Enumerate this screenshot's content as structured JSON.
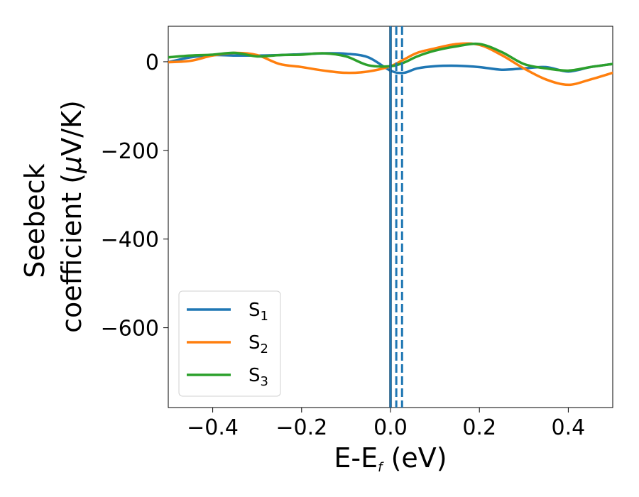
{
  "chart_data": {
    "type": "line",
    "xlabel": "E-E_f (eV)",
    "ylabel": "Seebeck coefficient (μV/K)",
    "xlim": [
      -0.5,
      0.5
    ],
    "ylim": [
      -780,
      80
    ],
    "xticks": [
      -0.4,
      -0.2,
      0.0,
      0.2,
      0.4
    ],
    "xtick_labels": [
      "−0.4",
      "−0.2",
      "0.0",
      "0.2",
      "0.4"
    ],
    "yticks": [
      0,
      -200,
      -400,
      -600
    ],
    "ytick_labels": [
      "0",
      "−200",
      "−400",
      "−600"
    ],
    "grid": false,
    "legend_position": "lower-left",
    "series": [
      {
        "name": "S1",
        "color": "#1f77b4",
        "x": [
          -0.5,
          -0.45,
          -0.4,
          -0.35,
          -0.3,
          -0.25,
          -0.2,
          -0.15,
          -0.1,
          -0.05,
          0.0,
          0.03,
          0.06,
          0.1,
          0.15,
          0.2,
          0.25,
          0.3,
          0.35,
          0.4,
          0.45,
          0.5
        ],
        "y": [
          -1,
          10,
          15,
          14,
          14,
          15,
          17,
          19,
          18,
          10,
          -20,
          -25,
          -15,
          -10,
          -9,
          -12,
          -18,
          -15,
          -12,
          -22,
          -12,
          -5
        ]
      },
      {
        "name": "S2",
        "color": "#ff7f0e",
        "x": [
          -0.5,
          -0.45,
          -0.4,
          -0.35,
          -0.3,
          -0.25,
          -0.2,
          -0.15,
          -0.1,
          -0.05,
          0.0,
          0.03,
          0.06,
          0.1,
          0.15,
          0.2,
          0.25,
          0.3,
          0.35,
          0.4,
          0.45,
          0.5
        ],
        "y": [
          -1,
          2,
          14,
          20,
          15,
          -5,
          -12,
          -20,
          -25,
          -22,
          -10,
          5,
          20,
          30,
          40,
          38,
          15,
          -15,
          -40,
          -52,
          -40,
          -25
        ]
      },
      {
        "name": "S3",
        "color": "#2ca02c",
        "x": [
          -0.5,
          -0.45,
          -0.4,
          -0.35,
          -0.3,
          -0.25,
          -0.2,
          -0.15,
          -0.1,
          -0.05,
          0.0,
          0.03,
          0.06,
          0.1,
          0.15,
          0.2,
          0.25,
          0.3,
          0.35,
          0.4,
          0.45,
          0.5
        ],
        "y": [
          10,
          14,
          16,
          20,
          12,
          15,
          16,
          19,
          12,
          -8,
          -10,
          -2,
          12,
          25,
          35,
          40,
          22,
          -5,
          -15,
          -20,
          -12,
          -5
        ]
      }
    ],
    "vertical_lines": [
      {
        "x": 0.0,
        "style": "solid",
        "color": "#000000"
      },
      {
        "x": 0.0,
        "style": "solid",
        "color": "#1f77b4"
      },
      {
        "x": 0.013,
        "style": "dashed",
        "color": "#1f77b4"
      },
      {
        "x": 0.026,
        "style": "dashed",
        "color": "#1f77b4"
      }
    ]
  }
}
